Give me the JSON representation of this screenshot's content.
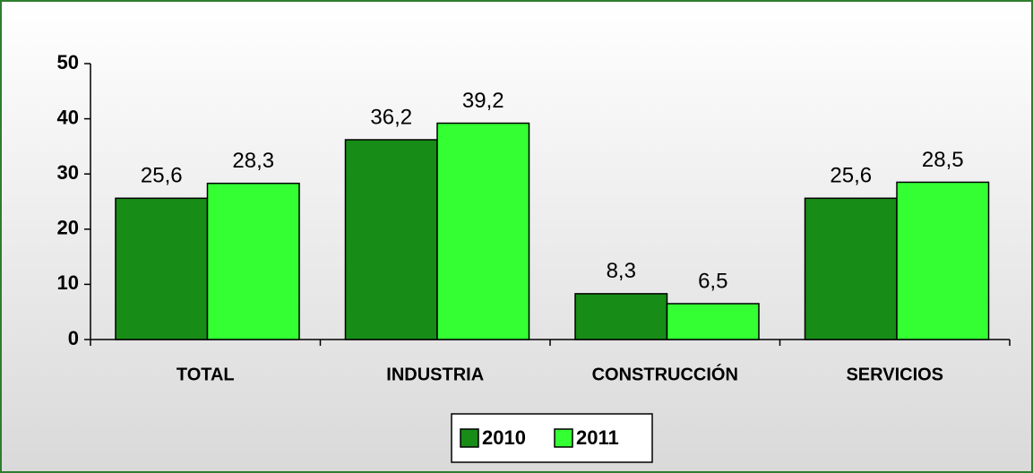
{
  "chart_data": {
    "type": "bar",
    "categories": [
      "TOTAL",
      "INDUSTRIA",
      "CONSTRUCCIÓN",
      "SERVICIOS"
    ],
    "series": [
      {
        "name": "2010",
        "color": "#178c17",
        "values": [
          25.6,
          36.2,
          8.3,
          25.6
        ],
        "value_labels": [
          "25,6",
          "36,2",
          "8,3",
          "25,6"
        ]
      },
      {
        "name": "2011",
        "color": "#33ff33",
        "values": [
          28.3,
          39.2,
          6.5,
          28.5
        ],
        "value_labels": [
          "28,3",
          "39,2",
          "6,5",
          "28,5"
        ]
      }
    ],
    "ylim": [
      0,
      50
    ],
    "yticks": [
      0,
      10,
      20,
      30,
      40,
      50
    ],
    "grid": false,
    "legend": "bottom"
  }
}
